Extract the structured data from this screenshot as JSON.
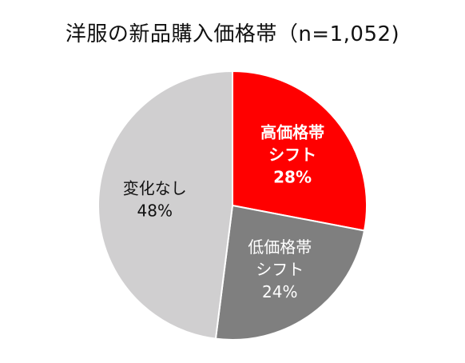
{
  "title": "洋服の新品購入価格帯（n=1,052)",
  "chart_data": {
    "type": "pie",
    "start_angle_deg": 0,
    "direction": "clockwise",
    "slices": [
      {
        "label_lines": [
          "高価格帯",
          "シフト"
        ],
        "percent_label": "28%",
        "value": 28,
        "color": "#ff0000",
        "text_color": "#ffffff",
        "bold": true
      },
      {
        "label_lines": [
          "低価格帯",
          "シフト"
        ],
        "percent_label": "24%",
        "value": 24,
        "color": "#7f7f7f",
        "text_color": "#ffffff",
        "bold": false
      },
      {
        "label_lines": [
          "変化なし"
        ],
        "percent_label": "48%",
        "value": 48,
        "color": "#d0cfd0",
        "text_color": "#111111",
        "bold": false
      }
    ]
  }
}
